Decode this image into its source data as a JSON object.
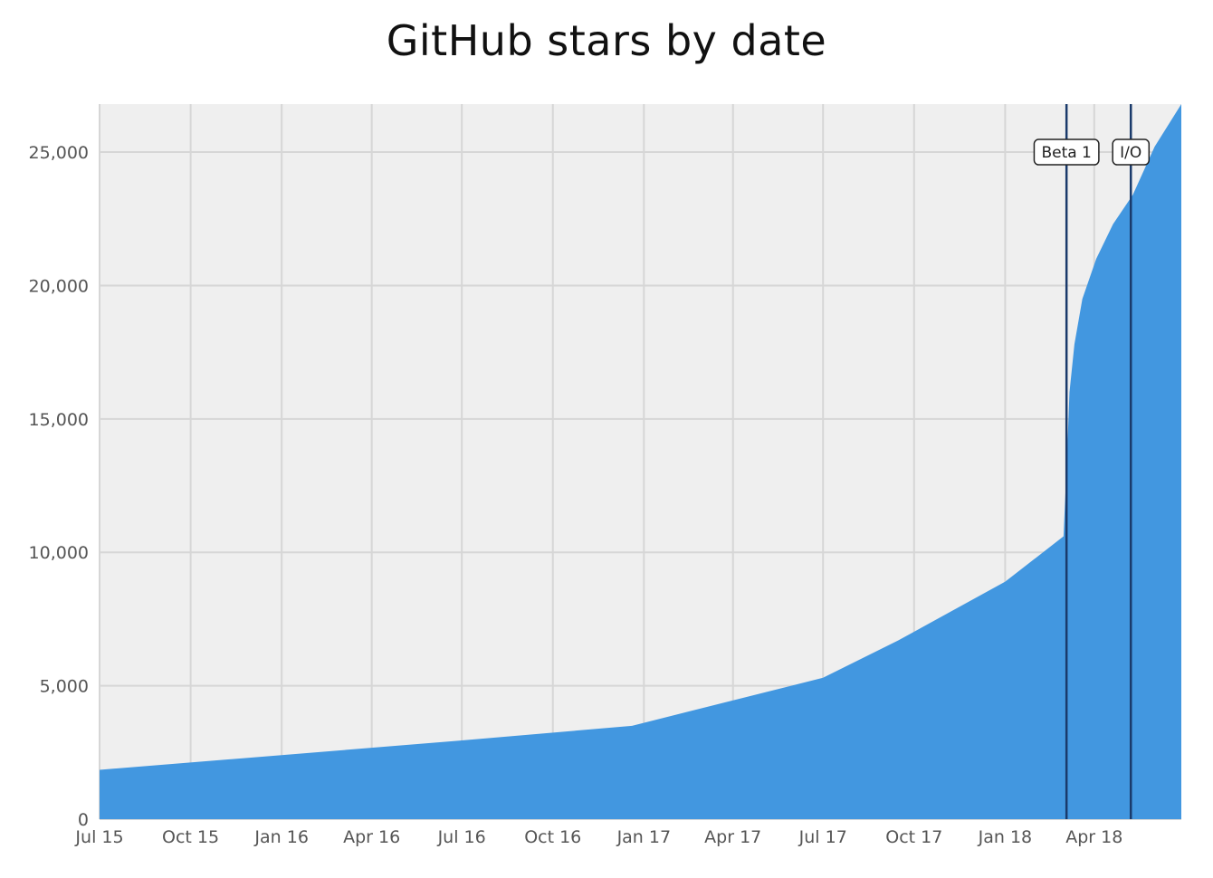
{
  "chart_data": {
    "type": "area",
    "title": "GitHub stars by date",
    "xlabel": "",
    "ylabel": "",
    "xlim": [
      "2015-07-01",
      "2018-06-28"
    ],
    "ylim": [
      0,
      26800
    ],
    "grid": true,
    "colors": {
      "area": "#4297e0",
      "plot_background": "#efefef",
      "grid": "#d6d6d6",
      "event_line": "#1a3a6b"
    },
    "x_ticks": [
      {
        "date": "2015-07-01",
        "label": "Jul 15"
      },
      {
        "date": "2015-10-01",
        "label": "Oct 15"
      },
      {
        "date": "2016-01-01",
        "label": "Jan 16"
      },
      {
        "date": "2016-04-01",
        "label": "Apr 16"
      },
      {
        "date": "2016-07-01",
        "label": "Jul 16"
      },
      {
        "date": "2016-10-01",
        "label": "Oct 16"
      },
      {
        "date": "2017-01-01",
        "label": "Jan 17"
      },
      {
        "date": "2017-04-01",
        "label": "Apr 17"
      },
      {
        "date": "2017-07-01",
        "label": "Jul 17"
      },
      {
        "date": "2017-10-01",
        "label": "Oct 17"
      },
      {
        "date": "2018-01-01",
        "label": "Jan 18"
      },
      {
        "date": "2018-04-01",
        "label": "Apr 18"
      }
    ],
    "y_ticks": [
      {
        "value": 0,
        "label": "0"
      },
      {
        "value": 5000,
        "label": "5,000"
      },
      {
        "value": 10000,
        "label": "10,000"
      },
      {
        "value": 15000,
        "label": "15,000"
      },
      {
        "value": 20000,
        "label": "20,000"
      },
      {
        "value": 25000,
        "label": "25,000"
      }
    ],
    "series": [
      {
        "points": [
          {
            "x": "2015-07-01",
            "y": 1850
          },
          {
            "x": "2016-01-01",
            "y": 2400
          },
          {
            "x": "2016-07-01",
            "y": 2950
          },
          {
            "x": "2016-12-20",
            "y": 3500
          },
          {
            "x": "2017-07-01",
            "y": 5300
          },
          {
            "x": "2017-09-15",
            "y": 6700
          },
          {
            "x": "2018-01-01",
            "y": 8900
          },
          {
            "x": "2018-03-01",
            "y": 10600
          },
          {
            "x": "2018-03-05",
            "y": 14000
          },
          {
            "x": "2018-03-07",
            "y": 16000
          },
          {
            "x": "2018-03-12",
            "y": 17800
          },
          {
            "x": "2018-03-20",
            "y": 19500
          },
          {
            "x": "2018-04-03",
            "y": 21000
          },
          {
            "x": "2018-04-20",
            "y": 22300
          },
          {
            "x": "2018-05-10",
            "y": 23400
          },
          {
            "x": "2018-06-01",
            "y": 25200
          },
          {
            "x": "2018-06-28",
            "y": 26800
          }
        ]
      }
    ],
    "events": [
      {
        "date": "2018-03-04",
        "label": "Beta 1"
      },
      {
        "date": "2018-05-08",
        "label": "I/O"
      }
    ]
  }
}
